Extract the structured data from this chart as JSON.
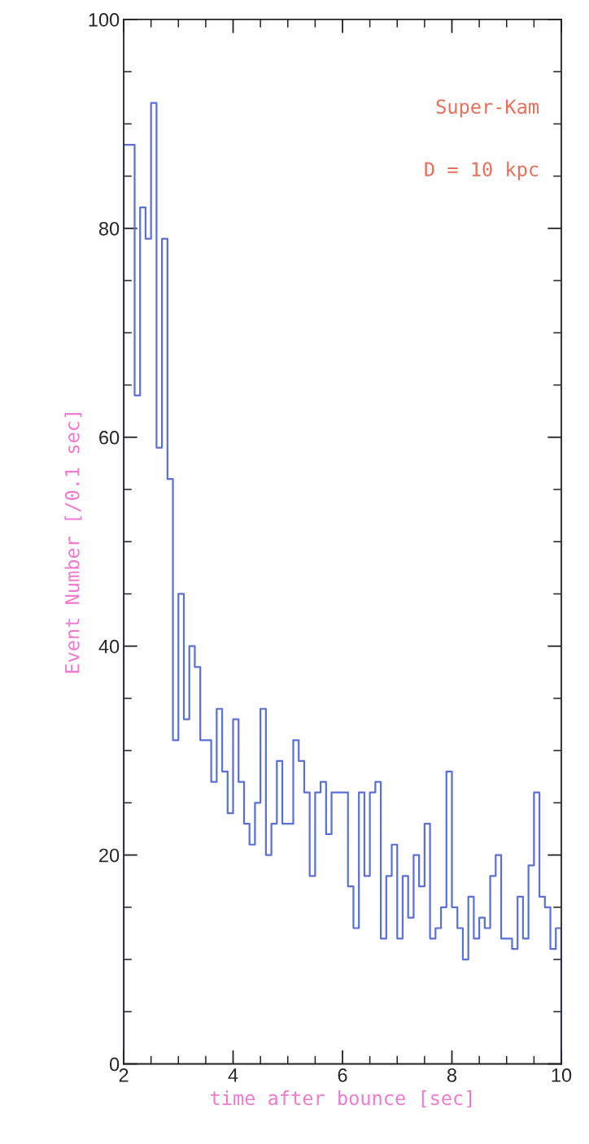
{
  "chart_data": {
    "type": "histogram",
    "xlabel": "time after bounce [sec]",
    "ylabel": "Event Number [/0.1 sec]",
    "annotations": [
      "Super-Kam",
      "D = 10 kpc"
    ],
    "bins": [
      2.0,
      2.1,
      2.2,
      2.3,
      2.4,
      2.5,
      2.6,
      2.7,
      2.8,
      2.9,
      3.0,
      3.1,
      3.2,
      3.3,
      3.4,
      3.5,
      3.6,
      3.7,
      3.8,
      3.9,
      4.0,
      4.1,
      4.2,
      4.3,
      4.4,
      4.5,
      4.6,
      4.7,
      4.8,
      4.9,
      5.0,
      5.1,
      5.2,
      5.3,
      5.4,
      5.5,
      5.6,
      5.7,
      5.8,
      5.9,
      6.0,
      6.1,
      6.2,
      6.3,
      6.4,
      6.5,
      6.6,
      6.7,
      6.8,
      6.9,
      7.0,
      7.1,
      7.2,
      7.3,
      7.4,
      7.5,
      7.6,
      7.7,
      7.8,
      7.9,
      8.0,
      8.1,
      8.2,
      8.3,
      8.4,
      8.5,
      8.6,
      8.7,
      8.8,
      8.9,
      9.0,
      9.1,
      9.2,
      9.3,
      9.4,
      9.5,
      9.6,
      9.7,
      9.8,
      9.9,
      10.0
    ],
    "values": [
      88,
      88,
      64,
      82,
      79,
      92,
      59,
      79,
      56,
      31,
      45,
      33,
      40,
      38,
      31,
      31,
      27,
      34,
      28,
      24,
      33,
      27,
      23,
      21,
      25,
      34,
      20,
      23,
      29,
      23,
      23,
      31,
      29,
      26,
      18,
      26,
      27,
      22,
      26,
      26,
      26,
      17,
      13,
      26,
      18,
      26,
      27,
      12,
      18,
      21,
      12,
      18,
      14,
      20,
      17,
      23,
      12,
      13,
      15,
      28,
      15,
      13,
      10,
      16,
      12,
      14,
      13,
      18,
      20,
      12,
      12,
      11,
      16,
      12,
      19,
      26,
      16,
      15,
      11,
      13
    ],
    "color": "#5b6fd8",
    "xlim": [
      2,
      10
    ],
    "ylim": [
      0,
      100
    ],
    "xticks": [
      2,
      4,
      6,
      8,
      10
    ],
    "yticks": [
      0,
      20,
      40,
      60,
      80,
      100
    ],
    "grid": false,
    "legend": false
  }
}
